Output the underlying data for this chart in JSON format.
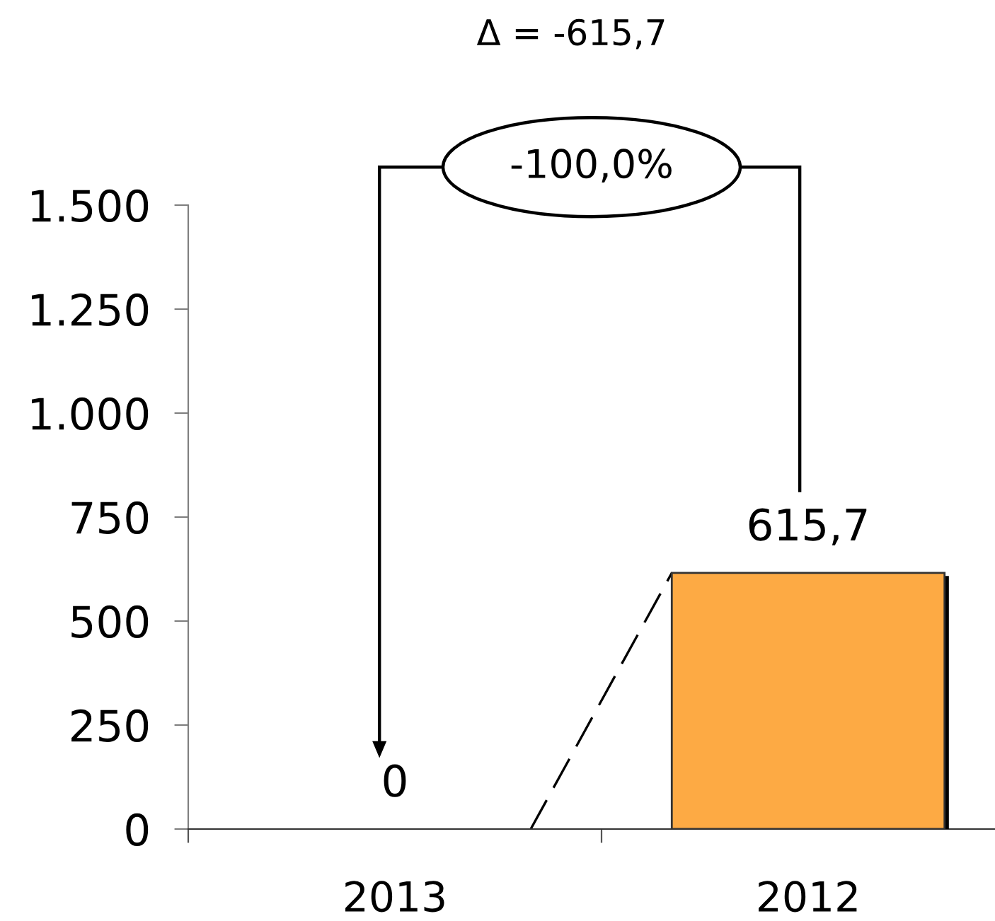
{
  "chart_data": {
    "type": "bar",
    "title": "Δ = -615,7",
    "categories": [
      "2013",
      "2012"
    ],
    "values": [
      0,
      615.7
    ],
    "color": "#fdaa44",
    "value_labels": [
      "0",
      "615,7"
    ],
    "ylim": [
      0,
      1500
    ],
    "yticks": [
      0,
      250,
      500,
      750,
      {
        "value": 1000,
        "label": "1.000"
      },
      {
        "value": 1250,
        "label": "1.250"
      },
      {
        "value": 1500,
        "label": "1.500"
      }
    ],
    "annotations": [
      "-100,0%"
    ]
  }
}
